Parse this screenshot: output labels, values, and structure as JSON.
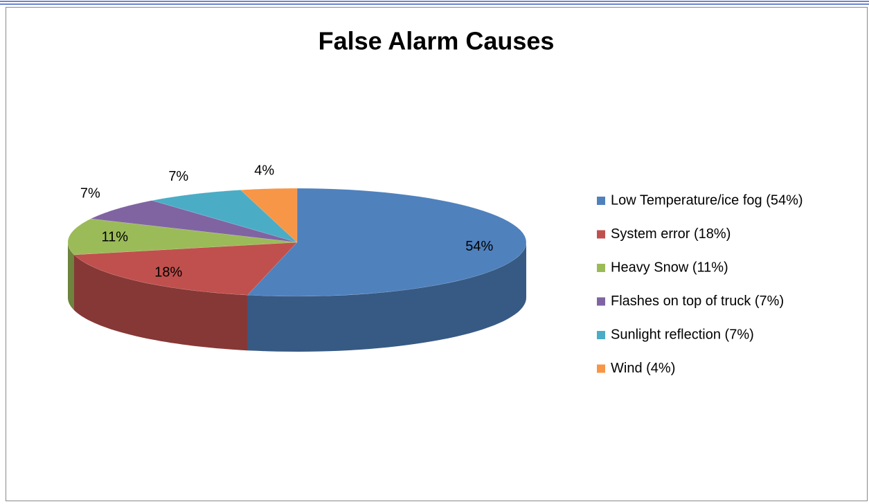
{
  "chart_data": {
    "type": "pie",
    "title": "False Alarm Causes",
    "categories": [
      "Low Temperature/ice fog (54%)",
      "System error (18%)",
      "Heavy Snow (11%)",
      "Flashes on top of truck (7%)",
      "Sunlight reflection (7%)",
      "Wind (4%)"
    ],
    "values": [
      54,
      18,
      11,
      7,
      7,
      4
    ],
    "value_labels": [
      "54%",
      "18%",
      "11%",
      "7%",
      "7%",
      "4%"
    ],
    "colors": [
      "#4f81bd",
      "#c0504d",
      "#9bbb59",
      "#8064a2",
      "#4bacc6",
      "#f79646"
    ],
    "legend": "right"
  }
}
